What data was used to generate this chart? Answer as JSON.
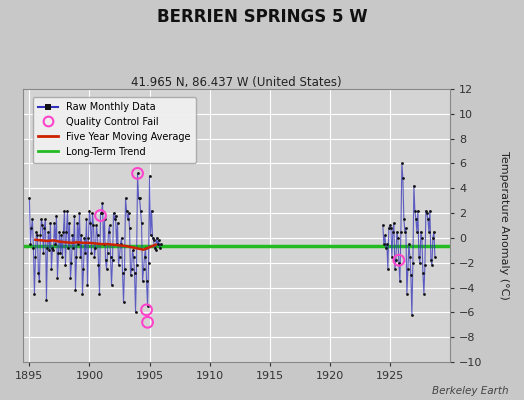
{
  "title": "BERRIEN SPRINGS 5 W",
  "subtitle": "41.965 N, 86.437 W (United States)",
  "ylabel": "Temperature Anomaly (°C)",
  "xlabel_credit": "Berkeley Earth",
  "ylim": [
    -10,
    12
  ],
  "xlim": [
    1894.5,
    1930.0
  ],
  "xticks": [
    1895,
    1900,
    1905,
    1910,
    1915,
    1920,
    1925
  ],
  "yticks": [
    -10,
    -8,
    -6,
    -4,
    -2,
    0,
    2,
    4,
    6,
    8,
    10,
    12
  ],
  "fig_bg_color": "#c8c8c8",
  "plot_bg_color": "#d4d4d4",
  "grid_color": "#ffffff",
  "raw_line_color": "#3333bb",
  "raw_dot_color": "#111111",
  "ma_color": "#cc2200",
  "trend_color": "#22bb22",
  "qc_color": "#ff44cc",
  "monthly_data_seg1": [
    [
      1895.0,
      3.2
    ],
    [
      1895.083,
      -0.5
    ],
    [
      1895.167,
      0.8
    ],
    [
      1895.25,
      1.5
    ],
    [
      1895.333,
      -0.8
    ],
    [
      1895.417,
      -4.5
    ],
    [
      1895.5,
      -1.5
    ],
    [
      1895.583,
      0.5
    ],
    [
      1895.667,
      0.2
    ],
    [
      1895.75,
      -2.8
    ],
    [
      1895.833,
      -3.5
    ],
    [
      1895.917,
      0.2
    ],
    [
      1896.0,
      1.5
    ],
    [
      1896.083,
      1.0
    ],
    [
      1896.167,
      -1.2
    ],
    [
      1896.25,
      0.8
    ],
    [
      1896.333,
      1.5
    ],
    [
      1896.417,
      -5.0
    ],
    [
      1896.5,
      -0.8
    ],
    [
      1896.583,
      0.5
    ],
    [
      1896.667,
      -1.0
    ],
    [
      1896.75,
      1.2
    ],
    [
      1896.833,
      -2.5
    ],
    [
      1896.917,
      -0.8
    ],
    [
      1897.0,
      -1.0
    ],
    [
      1897.083,
      1.2
    ],
    [
      1897.167,
      -0.5
    ],
    [
      1897.25,
      1.8
    ],
    [
      1897.333,
      -3.2
    ],
    [
      1897.417,
      -1.2
    ],
    [
      1897.5,
      0.5
    ],
    [
      1897.583,
      -1.2
    ],
    [
      1897.667,
      0.2
    ],
    [
      1897.75,
      -1.5
    ],
    [
      1897.833,
      0.5
    ],
    [
      1897.917,
      2.2
    ],
    [
      1898.0,
      -2.2
    ],
    [
      1898.083,
      0.5
    ],
    [
      1898.167,
      2.2
    ],
    [
      1898.25,
      -0.8
    ],
    [
      1898.333,
      1.2
    ],
    [
      1898.417,
      -3.2
    ],
    [
      1898.5,
      -2.0
    ],
    [
      1898.583,
      0.2
    ],
    [
      1898.667,
      -0.8
    ],
    [
      1898.75,
      1.8
    ],
    [
      1898.833,
      -4.2
    ],
    [
      1898.917,
      -1.5
    ],
    [
      1899.0,
      1.2
    ],
    [
      1899.083,
      -0.5
    ],
    [
      1899.167,
      2.0
    ],
    [
      1899.25,
      -1.5
    ],
    [
      1899.333,
      0.2
    ],
    [
      1899.417,
      -4.5
    ],
    [
      1899.5,
      -2.5
    ],
    [
      1899.583,
      0.0
    ],
    [
      1899.667,
      -1.2
    ],
    [
      1899.75,
      1.5
    ],
    [
      1899.833,
      -3.8
    ],
    [
      1899.917,
      0.0
    ],
    [
      1900.0,
      2.2
    ],
    [
      1900.083,
      1.2
    ],
    [
      1900.167,
      -1.2
    ],
    [
      1900.25,
      2.0
    ],
    [
      1900.333,
      1.0
    ],
    [
      1900.417,
      -1.5
    ],
    [
      1900.5,
      -0.8
    ],
    [
      1900.583,
      1.0
    ],
    [
      1900.667,
      0.2
    ],
    [
      1900.75,
      -2.2
    ],
    [
      1900.833,
      -4.5
    ],
    [
      1900.917,
      2.0
    ],
    [
      1901.0,
      2.0
    ],
    [
      1901.083,
      2.8
    ],
    [
      1901.167,
      -0.5
    ],
    [
      1901.25,
      1.5
    ],
    [
      1901.333,
      -1.8
    ],
    [
      1901.417,
      -2.5
    ],
    [
      1901.5,
      -1.2
    ],
    [
      1901.583,
      0.5
    ],
    [
      1901.667,
      1.0
    ],
    [
      1901.75,
      -1.5
    ],
    [
      1901.833,
      -3.8
    ],
    [
      1901.917,
      -1.8
    ],
    [
      1902.0,
      2.0
    ],
    [
      1902.083,
      1.5
    ],
    [
      1902.167,
      1.8
    ],
    [
      1902.25,
      -0.5
    ],
    [
      1902.333,
      1.2
    ],
    [
      1902.417,
      -2.2
    ],
    [
      1902.5,
      -1.5
    ],
    [
      1902.583,
      -0.5
    ],
    [
      1902.667,
      0.0
    ],
    [
      1902.75,
      -2.8
    ],
    [
      1902.833,
      -5.2
    ],
    [
      1902.917,
      -2.5
    ],
    [
      1903.0,
      3.2
    ],
    [
      1903.083,
      2.2
    ],
    [
      1903.167,
      1.5
    ],
    [
      1903.25,
      2.0
    ],
    [
      1903.333,
      0.8
    ],
    [
      1903.417,
      -3.0
    ],
    [
      1903.5,
      -2.5
    ],
    [
      1903.583,
      -1.0
    ],
    [
      1903.667,
      -1.5
    ],
    [
      1903.75,
      -2.8
    ],
    [
      1903.833,
      -6.0
    ],
    [
      1903.917,
      -2.2
    ],
    [
      1904.0,
      5.2
    ],
    [
      1904.083,
      3.2
    ],
    [
      1904.167,
      3.2
    ],
    [
      1904.25,
      2.2
    ],
    [
      1904.333,
      1.2
    ],
    [
      1904.417,
      -3.5
    ],
    [
      1904.5,
      -2.5
    ],
    [
      1904.583,
      -1.5
    ],
    [
      1904.667,
      -0.8
    ],
    [
      1904.75,
      -3.5
    ],
    [
      1904.833,
      -5.5
    ],
    [
      1904.917,
      -2.0
    ],
    [
      1905.0,
      5.0
    ],
    [
      1905.083,
      0.2
    ],
    [
      1905.167,
      2.2
    ],
    [
      1905.25,
      0.0
    ],
    [
      1905.333,
      -0.2
    ],
    [
      1905.417,
      -0.8
    ],
    [
      1905.5,
      -1.0
    ],
    [
      1905.583,
      0.0
    ],
    [
      1905.667,
      -0.5
    ],
    [
      1905.75,
      -0.2
    ],
    [
      1905.833,
      -0.8
    ],
    [
      1905.917,
      -0.5
    ]
  ],
  "monthly_data_seg2": [
    [
      1924.417,
      1.0
    ],
    [
      1924.5,
      -0.5
    ],
    [
      1924.583,
      0.2
    ],
    [
      1924.667,
      -0.8
    ],
    [
      1924.75,
      -0.5
    ],
    [
      1924.833,
      -2.5
    ],
    [
      1924.917,
      0.8
    ],
    [
      1925.0,
      1.0
    ],
    [
      1925.083,
      0.8
    ],
    [
      1925.167,
      -1.5
    ],
    [
      1925.25,
      0.5
    ],
    [
      1925.333,
      1.2
    ],
    [
      1925.417,
      -2.5
    ],
    [
      1925.5,
      -1.8
    ],
    [
      1925.583,
      0.5
    ],
    [
      1925.667,
      0.0
    ],
    [
      1925.75,
      -2.0
    ],
    [
      1925.833,
      -3.5
    ],
    [
      1925.917,
      0.5
    ],
    [
      1926.0,
      6.0
    ],
    [
      1926.083,
      4.8
    ],
    [
      1926.167,
      1.5
    ],
    [
      1926.25,
      0.5
    ],
    [
      1926.333,
      0.8
    ],
    [
      1926.417,
      -4.5
    ],
    [
      1926.5,
      -2.5
    ],
    [
      1926.583,
      -0.5
    ],
    [
      1926.667,
      -1.5
    ],
    [
      1926.75,
      -3.0
    ],
    [
      1926.833,
      -6.2
    ],
    [
      1926.917,
      -2.0
    ],
    [
      1927.0,
      4.2
    ],
    [
      1927.083,
      2.2
    ],
    [
      1927.167,
      1.5
    ],
    [
      1927.25,
      0.5
    ],
    [
      1927.333,
      2.2
    ],
    [
      1927.417,
      -1.5
    ],
    [
      1927.5,
      -2.0
    ],
    [
      1927.583,
      0.5
    ],
    [
      1927.667,
      0.0
    ],
    [
      1927.75,
      -2.8
    ],
    [
      1927.833,
      -4.5
    ],
    [
      1927.917,
      -2.2
    ],
    [
      1928.0,
      2.2
    ],
    [
      1928.083,
      2.0
    ],
    [
      1928.167,
      1.5
    ],
    [
      1928.25,
      0.5
    ],
    [
      1928.333,
      2.2
    ],
    [
      1928.417,
      -1.8
    ],
    [
      1928.5,
      -2.2
    ],
    [
      1928.583,
      0.0
    ],
    [
      1928.667,
      0.5
    ],
    [
      1928.75,
      -1.5
    ]
  ],
  "qc_points": [
    [
      1904.0,
      5.2
    ],
    [
      1900.917,
      1.8
    ],
    [
      1904.75,
      -5.8
    ],
    [
      1904.833,
      -6.8
    ],
    [
      1925.75,
      -1.8
    ]
  ],
  "moving_avg": [
    [
      1895.5,
      -0.15
    ],
    [
      1896.0,
      -0.2
    ],
    [
      1896.5,
      -0.25
    ],
    [
      1897.0,
      -0.2
    ],
    [
      1897.5,
      -0.3
    ],
    [
      1898.0,
      -0.35
    ],
    [
      1898.5,
      -0.4
    ],
    [
      1899.0,
      -0.35
    ],
    [
      1899.5,
      -0.4
    ],
    [
      1900.0,
      -0.4
    ],
    [
      1900.5,
      -0.45
    ],
    [
      1901.0,
      -0.5
    ],
    [
      1901.5,
      -0.5
    ],
    [
      1902.0,
      -0.55
    ],
    [
      1902.5,
      -0.6
    ],
    [
      1903.0,
      -0.65
    ],
    [
      1903.5,
      -0.75
    ],
    [
      1904.0,
      -0.85
    ],
    [
      1904.5,
      -0.95
    ],
    [
      1905.0,
      -0.75
    ],
    [
      1905.5,
      -0.55
    ]
  ],
  "trend_x": [
    1894.5,
    1930.0
  ],
  "trend_y": [
    -0.65,
    -0.65
  ]
}
